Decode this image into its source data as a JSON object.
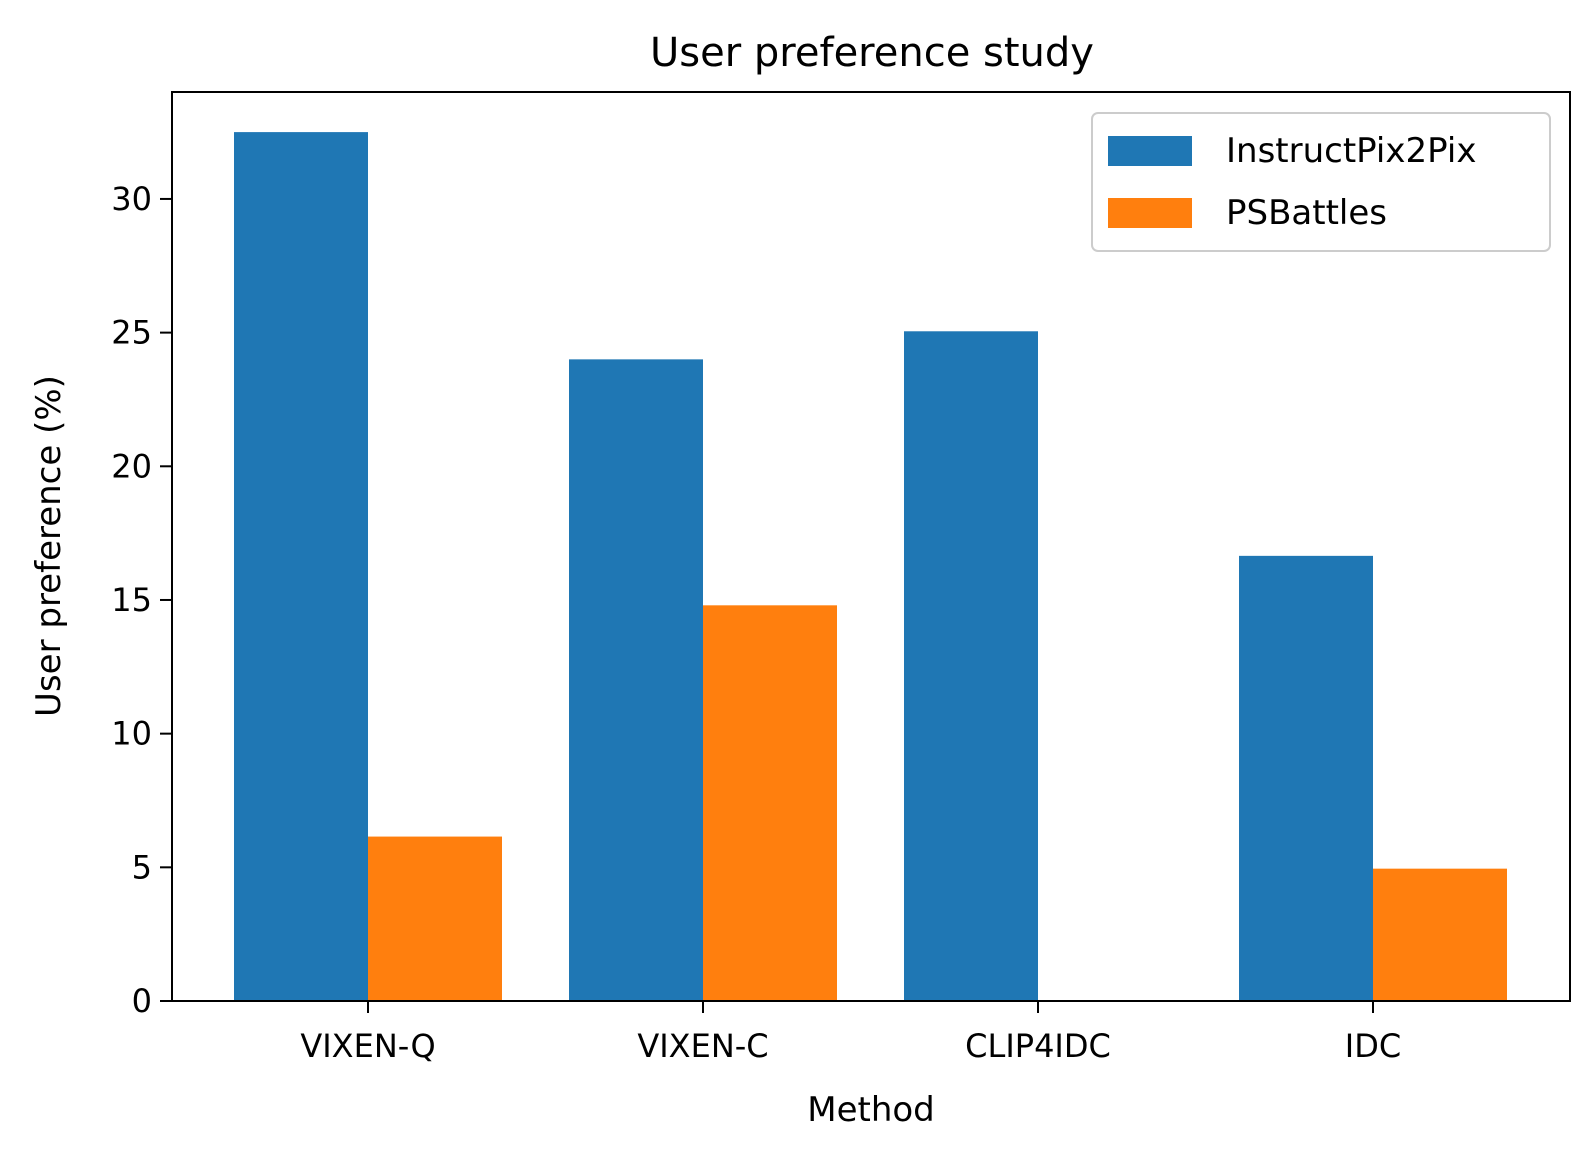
{
  "chart_data": {
    "type": "bar",
    "title": "User preference study",
    "xlabel": "Method",
    "ylabel": "User preference (%)",
    "categories": [
      "VIXEN-Q",
      "VIXEN-C",
      "CLIP4IDC",
      "IDC"
    ],
    "series": [
      {
        "name": "InstructPix2Pix",
        "color": "#1f77b4",
        "values": [
          32.5,
          24.0,
          25.05,
          16.65
        ]
      },
      {
        "name": "PSBattles",
        "color": "#ff7f0e",
        "values": [
          6.15,
          14.8,
          0,
          4.95
        ]
      }
    ],
    "ylim": [
      0,
      34
    ],
    "yticks": [
      0,
      5,
      10,
      15,
      20,
      25,
      30
    ],
    "grid": false,
    "legend": "top-right"
  }
}
